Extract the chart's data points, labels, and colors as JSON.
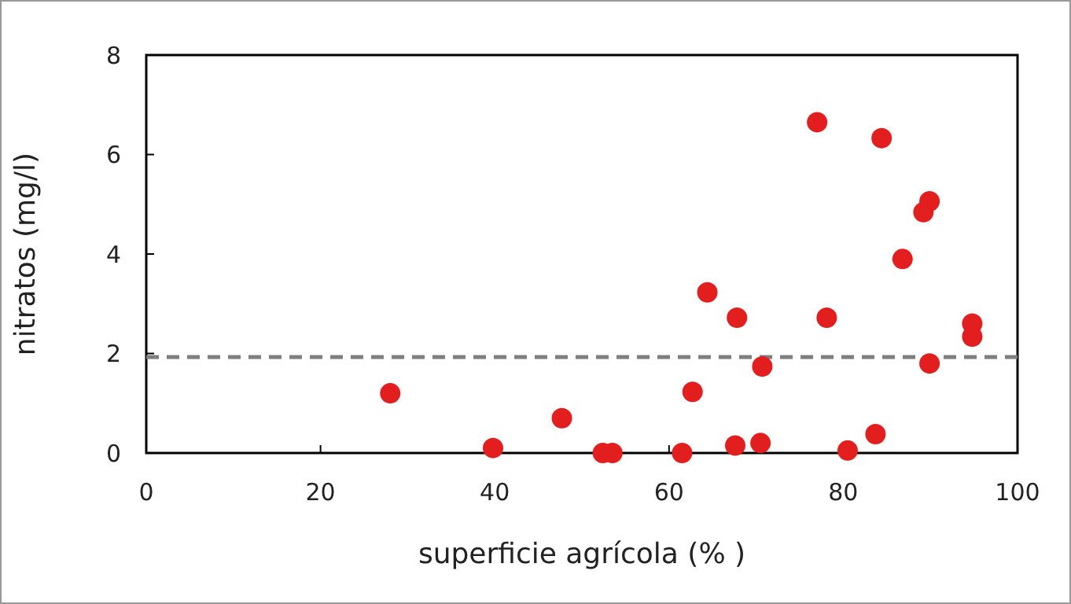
{
  "chart_data": {
    "type": "scatter",
    "xlabel": "superficie agrícola (% )",
    "ylabel": "nitratos (mg/l)",
    "x": [
      28,
      39.8,
      47.7,
      52.4,
      53.5,
      61.5,
      62.7,
      64.4,
      67.6,
      67.8,
      70.5,
      70.7,
      77,
      78.1,
      80.5,
      83.7,
      84.4,
      86.8,
      89.2,
      89.9,
      89.9,
      94.8,
      94.8
    ],
    "series": [
      {
        "color": "#e31e1e",
        "values": [
          1.2,
          0.1,
          0.7,
          0.0,
          0.0,
          0.0,
          1.23,
          3.23,
          0.15,
          2.72,
          0.2,
          1.74,
          6.65,
          2.72,
          0.05,
          0.38,
          6.33,
          3.9,
          4.84,
          5.06,
          1.8,
          2.6,
          2.34
        ]
      }
    ],
    "marker": "circle",
    "xlim": [
      0,
      100
    ],
    "xticks": [
      0,
      20,
      40,
      60,
      80,
      100
    ],
    "ylim": [
      0,
      8
    ],
    "yticks": [
      0,
      2,
      4,
      6,
      8
    ],
    "grid": false,
    "ref_lines": [
      {
        "axis": "y",
        "value": 1.93,
        "color": "#7f7f7f",
        "line_style": "dashed"
      }
    ]
  }
}
